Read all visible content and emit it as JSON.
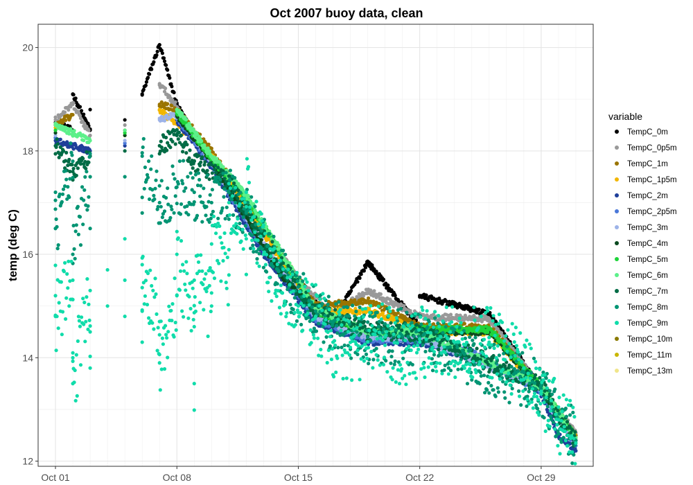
{
  "chart_data": {
    "type": "scatter",
    "title": "Oct 2007 buoy data, clean",
    "xlabel": "",
    "ylabel": "temp (deg C)",
    "x_axis_type": "date",
    "xlim": [
      "2007-09-30",
      "2007-11-01"
    ],
    "ylim": [
      11.9,
      20.45
    ],
    "xticks": [
      {
        "value": "2007-10-01",
        "label": "Oct 01"
      },
      {
        "value": "2007-10-08",
        "label": "Oct 08"
      },
      {
        "value": "2007-10-15",
        "label": "Oct 15"
      },
      {
        "value": "2007-10-22",
        "label": "Oct 22"
      },
      {
        "value": "2007-10-29",
        "label": "Oct 29"
      }
    ],
    "yticks": [
      12,
      14,
      16,
      18,
      20
    ],
    "grid": true,
    "legend": {
      "title": "variable",
      "placement": "right"
    },
    "gap": [
      "2007-10-03",
      "2007-10-05"
    ],
    "series": [
      {
        "name": "TempC_0m",
        "color": "#000000",
        "points": [
          [
            "2007-10-01",
            18.55
          ],
          [
            "2007-10-02",
            18.4
          ],
          [
            "2007-10-02",
            19.1
          ],
          [
            "2007-10-03",
            18.4
          ],
          [
            "2007-10-03",
            18.8
          ],
          [
            "2007-10-05",
            18.6
          ],
          [
            "2007-10-06",
            19.1
          ],
          [
            "2007-10-07",
            20.05
          ],
          [
            "2007-10-08",
            18.9
          ],
          [
            "2007-10-09",
            18.3
          ],
          [
            "2007-10-12",
            17.0
          ],
          [
            "2007-10-15",
            15.5
          ],
          [
            "2007-10-17",
            14.7
          ],
          [
            "2007-10-19",
            15.85
          ],
          [
            "2007-10-22",
            14.6
          ],
          [
            "2007-10-22",
            15.2
          ],
          [
            "2007-10-26",
            14.85
          ],
          [
            "2007-10-29",
            13.4
          ],
          [
            "2007-10-31",
            12.5
          ]
        ]
      },
      {
        "name": "TempC_0p5m",
        "color": "#999999",
        "points": [
          [
            "2007-10-01",
            18.6
          ],
          [
            "2007-10-02",
            18.9
          ],
          [
            "2007-10-03",
            18.3
          ],
          [
            "2007-10-05",
            18.5
          ],
          [
            "2007-10-07",
            19.3
          ],
          [
            "2007-10-08",
            18.85
          ],
          [
            "2007-10-09",
            18.25
          ],
          [
            "2007-10-12",
            17.0
          ],
          [
            "2007-10-15",
            15.5
          ],
          [
            "2007-10-17",
            14.85
          ],
          [
            "2007-10-19",
            15.3
          ],
          [
            "2007-10-22",
            14.8
          ],
          [
            "2007-10-26",
            14.75
          ],
          [
            "2007-10-29",
            13.4
          ],
          [
            "2007-10-31",
            12.55
          ]
        ]
      },
      {
        "name": "TempC_1m",
        "color": "#9a7400",
        "points": [
          [
            "2007-10-01",
            18.5
          ],
          [
            "2007-10-02",
            18.7
          ],
          [
            "2007-10-05",
            18.4
          ],
          [
            "2007-10-07",
            18.9
          ],
          [
            "2007-10-08",
            18.8
          ],
          [
            "2007-10-10",
            18.0
          ],
          [
            "2007-10-13",
            16.5
          ],
          [
            "2007-10-16",
            15.0
          ],
          [
            "2007-10-19",
            15.1
          ],
          [
            "2007-10-22",
            14.6
          ],
          [
            "2007-10-26",
            14.6
          ],
          [
            "2007-10-29",
            13.4
          ],
          [
            "2007-10-31",
            12.5
          ]
        ]
      },
      {
        "name": "TempC_1p5m",
        "color": "#f2b600",
        "points": [
          [
            "2007-10-01",
            18.45
          ],
          [
            "2007-10-05",
            18.3
          ],
          [
            "2007-10-07",
            18.8
          ],
          [
            "2007-10-10",
            17.9
          ],
          [
            "2007-10-13",
            16.4
          ],
          [
            "2007-10-16",
            14.9
          ],
          [
            "2007-10-19",
            14.9
          ],
          [
            "2007-10-20",
            14.8
          ],
          [
            "2007-10-22",
            14.5
          ],
          [
            "2007-10-26",
            14.5
          ],
          [
            "2007-10-29",
            13.35
          ],
          [
            "2007-10-31",
            12.45
          ]
        ]
      },
      {
        "name": "TempC_2m",
        "color": "#1f3f9a",
        "points": [
          [
            "2007-10-01",
            18.2
          ],
          [
            "2007-10-03",
            18.0
          ],
          [
            "2007-10-05",
            18.1
          ],
          [
            "2007-10-08",
            18.6
          ],
          [
            "2007-10-10",
            17.7
          ],
          [
            "2007-10-13",
            16.0
          ],
          [
            "2007-10-16",
            14.7
          ],
          [
            "2007-10-19",
            14.3
          ],
          [
            "2007-10-22",
            14.3
          ],
          [
            "2007-10-25",
            14.0
          ],
          [
            "2007-10-28",
            13.6
          ],
          [
            "2007-10-29",
            13.3
          ],
          [
            "2007-10-30",
            12.5
          ],
          [
            "2007-10-31",
            12.2
          ]
        ]
      },
      {
        "name": "TempC_2p5m",
        "color": "#4a78d9",
        "points": [
          [
            "2007-10-01",
            18.25
          ],
          [
            "2007-10-05",
            18.15
          ],
          [
            "2007-10-08",
            18.65
          ],
          [
            "2007-10-10",
            17.75
          ],
          [
            "2007-10-13",
            16.1
          ],
          [
            "2007-10-16",
            14.75
          ],
          [
            "2007-10-19",
            14.35
          ],
          [
            "2007-10-22",
            14.35
          ],
          [
            "2007-10-25",
            14.1
          ],
          [
            "2007-10-29",
            13.35
          ],
          [
            "2007-10-31",
            12.3
          ]
        ]
      },
      {
        "name": "TempC_3m",
        "color": "#9db3e8",
        "points": [
          [
            "2007-10-01",
            18.3
          ],
          [
            "2007-10-05",
            18.2
          ],
          [
            "2007-10-07",
            18.6
          ],
          [
            "2007-10-08",
            18.7
          ],
          [
            "2007-10-10",
            17.8
          ],
          [
            "2007-10-13",
            16.2
          ],
          [
            "2007-10-16",
            14.8
          ],
          [
            "2007-10-19",
            14.4
          ],
          [
            "2007-10-22",
            14.4
          ],
          [
            "2007-10-29",
            13.4
          ],
          [
            "2007-10-31",
            12.35
          ]
        ]
      },
      {
        "name": "TempC_4m",
        "color": "#0b4a1f",
        "points": [
          [
            "2007-10-01",
            18.35
          ],
          [
            "2007-10-05",
            18.3
          ],
          [
            "2007-10-08",
            18.7
          ],
          [
            "2007-10-10",
            17.8
          ],
          [
            "2007-10-14",
            15.6
          ],
          [
            "2007-10-16",
            14.9
          ],
          [
            "2007-10-19",
            14.5
          ],
          [
            "2007-10-22",
            14.5
          ],
          [
            "2007-10-26",
            14.5
          ],
          [
            "2007-10-29",
            13.4
          ],
          [
            "2007-10-31",
            12.4
          ]
        ]
      },
      {
        "name": "TempC_5m",
        "color": "#1ed43a",
        "points": [
          [
            "2007-10-01",
            18.4
          ],
          [
            "2007-10-05",
            18.35
          ],
          [
            "2007-10-08",
            18.75
          ],
          [
            "2007-10-10",
            17.85
          ],
          [
            "2007-10-12",
            17.1
          ],
          [
            "2007-10-16",
            14.9
          ],
          [
            "2007-10-19",
            14.5
          ],
          [
            "2007-10-22",
            14.55
          ],
          [
            "2007-10-26",
            14.55
          ],
          [
            "2007-10-29",
            13.45
          ],
          [
            "2007-10-31",
            12.45
          ]
        ]
      },
      {
        "name": "TempC_6m",
        "color": "#5cf08a",
        "points": [
          [
            "2007-10-01",
            18.5
          ],
          [
            "2007-10-03",
            18.2
          ],
          [
            "2007-10-05",
            18.4
          ],
          [
            "2007-10-08",
            18.8
          ],
          [
            "2007-10-10",
            17.9
          ],
          [
            "2007-10-12",
            17.15
          ],
          [
            "2007-10-16",
            14.95
          ],
          [
            "2007-10-19",
            14.5
          ],
          [
            "2007-10-22",
            14.5
          ],
          [
            "2007-10-29",
            13.45
          ],
          [
            "2007-10-31",
            12.45
          ]
        ]
      },
      {
        "name": "TempC_7m",
        "color": "#006b45",
        "points": [
          [
            "2007-10-01",
            18.1
          ],
          [
            "2007-10-02",
            17.6
          ],
          [
            "2007-10-03",
            17.9
          ],
          [
            "2007-10-05",
            18.0
          ],
          [
            "2007-10-07",
            18.1
          ],
          [
            "2007-10-08",
            18.3
          ],
          [
            "2007-10-09",
            17.8
          ],
          [
            "2007-10-11",
            17.4
          ],
          [
            "2007-10-14",
            15.8
          ],
          [
            "2007-10-16",
            14.9
          ],
          [
            "2007-10-19",
            14.5
          ],
          [
            "2007-10-22",
            14.5
          ],
          [
            "2007-10-29",
            13.45
          ],
          [
            "2007-10-31",
            12.4
          ]
        ]
      },
      {
        "name": "TempC_8m",
        "color": "#009473",
        "points": [
          [
            "2007-10-01",
            17.2
          ],
          [
            "2007-10-01",
            16.5
          ],
          [
            "2007-10-02",
            17.8
          ],
          [
            "2007-10-02",
            16.0
          ],
          [
            "2007-10-03",
            17.5
          ],
          [
            "2007-10-03",
            16.5
          ],
          [
            "2007-10-05",
            17.5
          ],
          [
            "2007-10-06",
            16.8
          ],
          [
            "2007-10-06",
            17.9
          ],
          [
            "2007-10-07",
            17.0
          ],
          [
            "2007-10-08",
            17.3
          ],
          [
            "2007-10-09",
            17.2
          ],
          [
            "2007-10-10",
            17.0
          ],
          [
            "2007-10-11",
            17.2
          ],
          [
            "2007-10-12",
            16.8
          ],
          [
            "2007-10-14",
            15.6
          ],
          [
            "2007-10-16",
            14.8
          ],
          [
            "2007-10-19",
            14.4
          ],
          [
            "2007-10-22",
            14.4
          ],
          [
            "2007-10-29",
            13.4
          ],
          [
            "2007-10-31",
            12.4
          ]
        ]
      },
      {
        "name": "TempC_9m",
        "color": "#10dcaa",
        "points": [
          [
            "2007-10-01",
            15.2
          ],
          [
            "2007-10-01",
            14.8
          ],
          [
            "2007-10-02",
            15.5
          ],
          [
            "2007-10-02",
            14.0
          ],
          [
            "2007-10-02",
            13.5
          ],
          [
            "2007-10-03",
            15.3
          ],
          [
            "2007-10-03",
            14.5
          ],
          [
            "2007-10-03",
            13.8
          ],
          [
            "2007-10-04",
            15.0
          ],
          [
            "2007-10-04",
            15.7
          ],
          [
            "2007-10-05",
            14.8
          ],
          [
            "2007-10-05",
            15.5
          ],
          [
            "2007-10-05",
            16.3
          ],
          [
            "2007-10-06",
            14.3
          ],
          [
            "2007-10-06",
            14.9
          ],
          [
            "2007-10-06",
            15.8
          ],
          [
            "2007-10-07",
            14.7
          ],
          [
            "2007-10-07",
            13.9
          ],
          [
            "2007-10-08",
            15.2
          ],
          [
            "2007-10-08",
            16.0
          ],
          [
            "2007-10-09",
            14.6
          ],
          [
            "2007-10-09",
            13.5
          ],
          [
            "2007-10-09",
            15.5
          ],
          [
            "2007-10-10",
            15.0
          ],
          [
            "2007-10-10",
            16.2
          ],
          [
            "2007-10-11",
            15.6
          ],
          [
            "2007-10-11",
            17.0
          ],
          [
            "2007-10-12",
            16.3
          ],
          [
            "2007-10-12",
            17.2
          ],
          [
            "2007-10-13",
            16.0
          ],
          [
            "2007-10-14",
            15.4
          ],
          [
            "2007-10-15",
            15.0
          ],
          [
            "2007-10-16",
            14.8
          ],
          [
            "2007-10-17",
            14.3
          ],
          [
            "2007-10-18",
            14.2
          ],
          [
            "2007-10-20",
            14.4
          ],
          [
            "2007-10-21",
            14.1
          ],
          [
            "2007-10-22",
            14.3
          ],
          [
            "2007-10-24",
            14.3
          ],
          [
            "2007-10-26",
            14.3
          ],
          [
            "2007-10-28",
            13.8
          ],
          [
            "2007-10-29",
            13.3
          ],
          [
            "2007-10-30",
            12.8
          ],
          [
            "2007-10-31",
            12.35
          ]
        ]
      },
      {
        "name": "TempC_10m",
        "color": "#8a7a00",
        "points": []
      },
      {
        "name": "TempC_11m",
        "color": "#c8b600",
        "points": []
      },
      {
        "name": "TempC_13m",
        "color": "#f0e58a",
        "points": []
      }
    ]
  }
}
